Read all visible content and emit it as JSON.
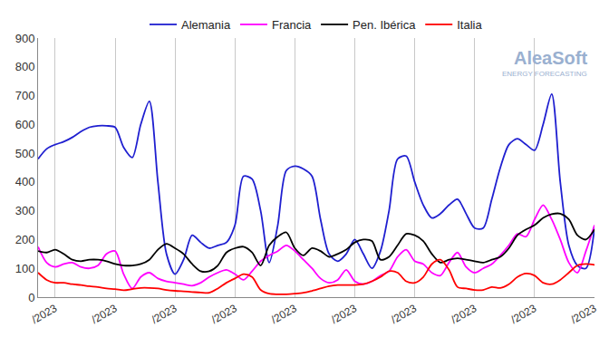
{
  "chart_data": {
    "type": "line",
    "annotations": [
      "AleaSoft",
      "ENERGY FORECASTING"
    ],
    "categories": [
      null,
      null,
      "/2023",
      null,
      null,
      null,
      null,
      null,
      null,
      "/2023",
      null,
      null,
      null,
      null,
      null,
      null,
      "/2023",
      null,
      null,
      null,
      null,
      null,
      null,
      "/2023",
      null,
      null,
      null,
      null,
      null,
      null,
      "/2023",
      null,
      null,
      null,
      null,
      null,
      null,
      "/2023",
      null,
      null,
      null,
      null,
      null,
      null,
      "/2023",
      null,
      null,
      null,
      null,
      null,
      null,
      "/2023",
      null,
      null,
      null,
      null,
      null,
      null,
      "/2023",
      null,
      null,
      null,
      null,
      null,
      null,
      "/2023"
    ],
    "series": [
      {
        "name": "Alemania",
        "color": "#1f1fd0",
        "values": [
          480,
          515,
          530,
          540,
          555,
          575,
          590,
          595,
          595,
          590,
          520,
          485,
          600,
          680,
          400,
          150,
          80,
          130,
          215,
          190,
          170,
          180,
          190,
          250,
          420,
          410,
          300,
          120,
          250,
          440,
          455,
          445,
          420,
          270,
          150,
          125,
          150,
          200,
          150,
          100,
          160,
          300,
          480,
          490,
          400,
          320,
          275,
          290,
          320,
          340,
          290,
          240,
          240,
          340,
          450,
          530,
          550,
          530,
          510,
          600,
          705,
          400,
          180,
          110,
          100,
          240
        ]
      },
      {
        "name": "Francia",
        "color": "#ff00ff",
        "values": [
          175,
          120,
          105,
          115,
          120,
          105,
          100,
          110,
          150,
          160,
          80,
          30,
          70,
          85,
          65,
          55,
          50,
          45,
          40,
          50,
          70,
          85,
          95,
          80,
          60,
          90,
          125,
          145,
          160,
          180,
          160,
          130,
          100,
          65,
          50,
          60,
          95,
          55,
          45,
          55,
          75,
          90,
          140,
          165,
          125,
          115,
          85,
          75,
          120,
          155,
          105,
          85,
          100,
          115,
          145,
          180,
          220,
          210,
          270,
          320,
          270,
          200,
          120,
          85,
          160,
          250
        ]
      },
      {
        "name": "Pen. Ibérica",
        "color": "#000000",
        "values": [
          160,
          155,
          165,
          150,
          130,
          125,
          130,
          130,
          125,
          115,
          110,
          110,
          115,
          130,
          165,
          185,
          170,
          150,
          115,
          90,
          90,
          110,
          155,
          170,
          175,
          155,
          110,
          180,
          210,
          225,
          170,
          145,
          170,
          160,
          140,
          150,
          165,
          190,
          200,
          195,
          130,
          140,
          180,
          220,
          215,
          195,
          150,
          120,
          130,
          135,
          130,
          125,
          120,
          130,
          140,
          170,
          215,
          235,
          250,
          275,
          288,
          290,
          270,
          215,
          200,
          235
        ]
      },
      {
        "name": "Italia",
        "color": "#ff0000",
        "values": [
          85,
          60,
          50,
          50,
          45,
          42,
          38,
          35,
          30,
          28,
          24,
          28,
          32,
          32,
          30,
          25,
          22,
          20,
          18,
          16,
          15,
          30,
          50,
          65,
          80,
          70,
          25,
          12,
          10,
          10,
          12,
          15,
          22,
          30,
          38,
          42,
          42,
          42,
          45,
          55,
          70,
          90,
          85,
          55,
          50,
          70,
          115,
          130,
          95,
          35,
          30,
          25,
          25,
          35,
          32,
          45,
          70,
          82,
          75,
          50,
          45,
          60,
          85,
          110,
          115,
          112
        ]
      }
    ],
    "ylim": [
      0,
      900
    ],
    "yticks": [
      0,
      100,
      200,
      300,
      400,
      500,
      600,
      700,
      800,
      900
    ],
    "grid": true,
    "legend": "top",
    "line_style": "solid",
    "marker": "none"
  }
}
